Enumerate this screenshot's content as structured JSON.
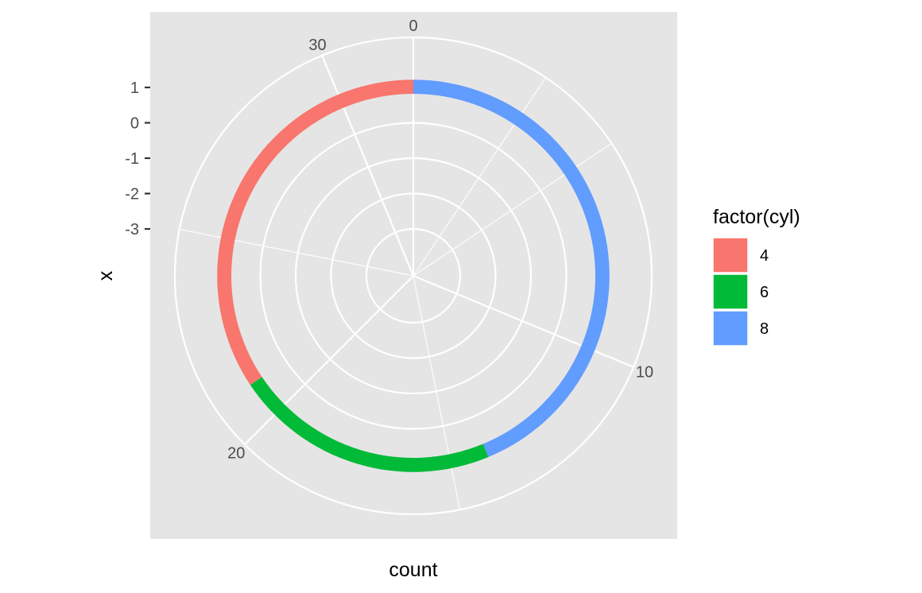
{
  "chart_data": {
    "type": "pie",
    "coord": "polar",
    "xlabel": "count",
    "ylabel": "x",
    "radial_axis": {
      "ticks": [
        "1",
        "0",
        "-1",
        "-2",
        "-3"
      ],
      "tick_values": [
        1,
        0,
        -1,
        -2,
        -3
      ]
    },
    "angular_axis": {
      "ticks": [
        "0",
        "10",
        "20",
        "30"
      ],
      "tick_values": [
        0,
        10,
        20,
        30
      ],
      "total": 32
    },
    "slices": [
      {
        "category": "8",
        "value": 14,
        "color": "#619CFF"
      },
      {
        "category": "6",
        "value": 7,
        "color": "#00BA38"
      },
      {
        "category": "4",
        "value": 11,
        "color": "#F8766D"
      }
    ],
    "legend": {
      "title": "factor(cyl)",
      "items": [
        {
          "label": "4",
          "color": "#F8766D"
        },
        {
          "label": "6",
          "color": "#00BA38"
        },
        {
          "label": "8",
          "color": "#619CFF"
        }
      ]
    },
    "panel_background": "#E5E5E5",
    "grid_color": "#FFFFFF",
    "grid": true
  }
}
